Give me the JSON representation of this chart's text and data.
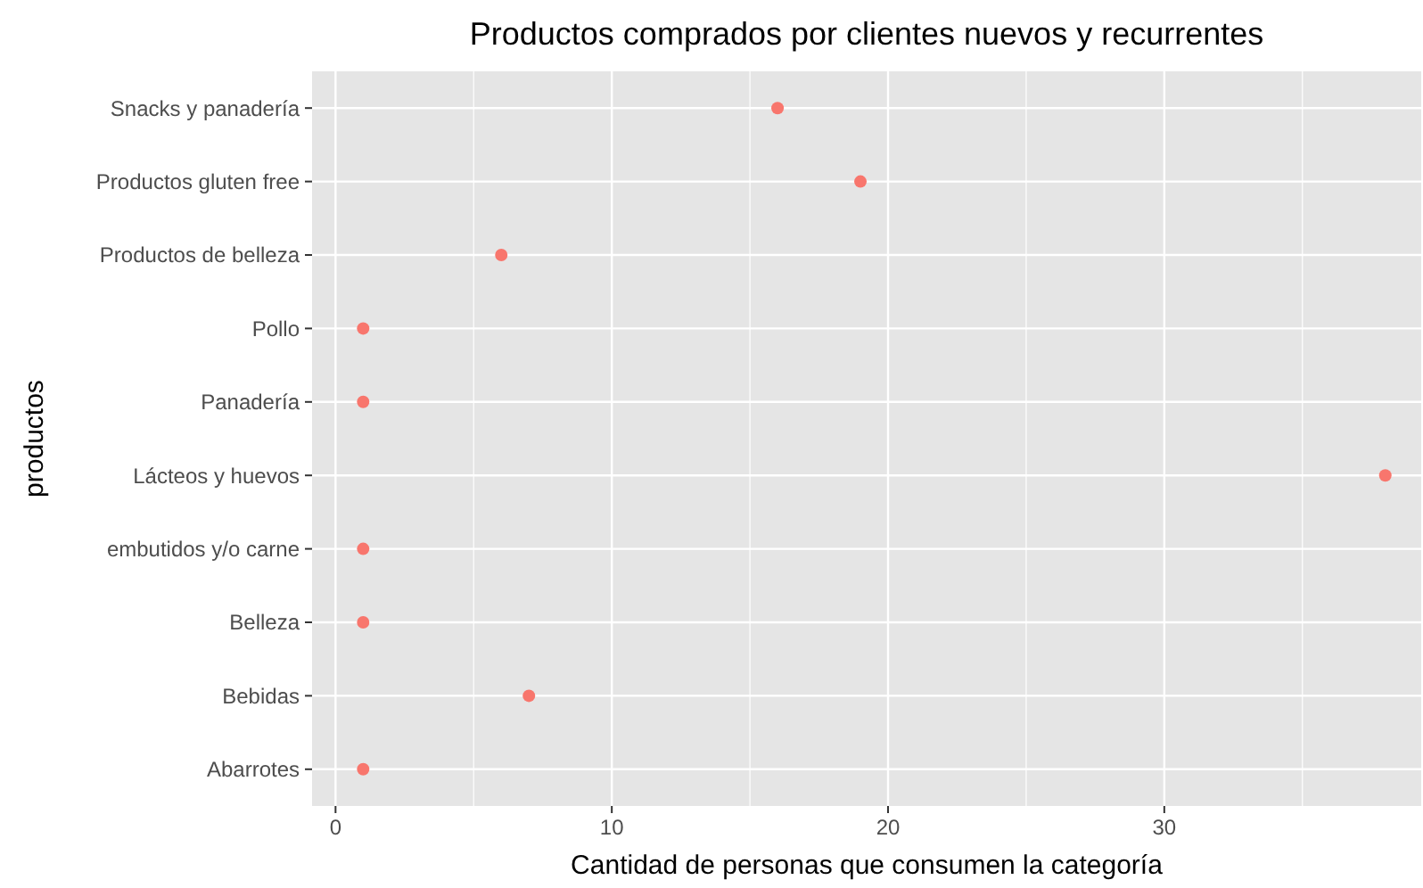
{
  "chart_data": {
    "type": "scatter",
    "orientation": "horizontal",
    "title": "Productos comprados por clientes nuevos y recurrentes",
    "xlabel": "Cantidad de personas que consumen la categoría",
    "ylabel": "productos",
    "categories": [
      "Snacks y panadería",
      "Productos gluten free",
      "Productos de belleza",
      "Pollo",
      "Panadería",
      "Lácteos y huevos",
      "embutidos y/o carne",
      "Belleza",
      "Bebidas",
      "Abarrotes"
    ],
    "values": [
      16,
      19,
      6,
      1,
      1,
      38,
      1,
      1,
      7,
      1
    ],
    "color": "#f8766d",
    "marker": "circle",
    "grid": true,
    "xlim": [
      -0.85,
      39.3
    ],
    "xticks": [
      0,
      {
        "value": 5,
        "label": null
      },
      10,
      {
        "value": 15,
        "label": null
      },
      20,
      {
        "value": 25,
        "label": null
      },
      30,
      {
        "value": 35,
        "label": null
      }
    ]
  }
}
